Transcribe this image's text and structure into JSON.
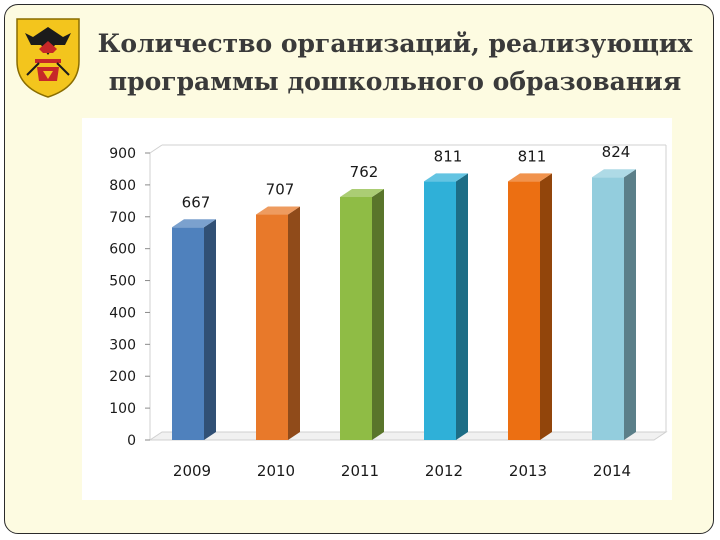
{
  "slide": {
    "title_line1": "Количество организаций,  реализующих",
    "title_line2": "программы дошкольного образования",
    "emblem": "regional-coat-of-arms"
  },
  "colors": {
    "slide_background": "#fdfbe1",
    "chart_background": "#ffffff",
    "grid": "#d0d0d0",
    "bars": [
      "#4f81bd",
      "#e8792a",
      "#8fbc45",
      "#2fb0d8",
      "#ec6f12",
      "#93cddd"
    ]
  },
  "chart_data": {
    "type": "bar",
    "style": "3d-columns",
    "title": "",
    "xlabel": "",
    "ylabel": "",
    "categories": [
      "2009",
      "2010",
      "2011",
      "2012",
      "2013",
      "2014"
    ],
    "values": [
      667,
      707,
      762,
      811,
      811,
      824
    ],
    "value_labels": [
      "667",
      "707",
      "762",
      "811",
      "811",
      "824"
    ],
    "ylim": [
      0,
      900
    ],
    "yticks": [
      0,
      100,
      200,
      300,
      400,
      500,
      600,
      700,
      800,
      900
    ],
    "grid": false,
    "legend": "none"
  }
}
